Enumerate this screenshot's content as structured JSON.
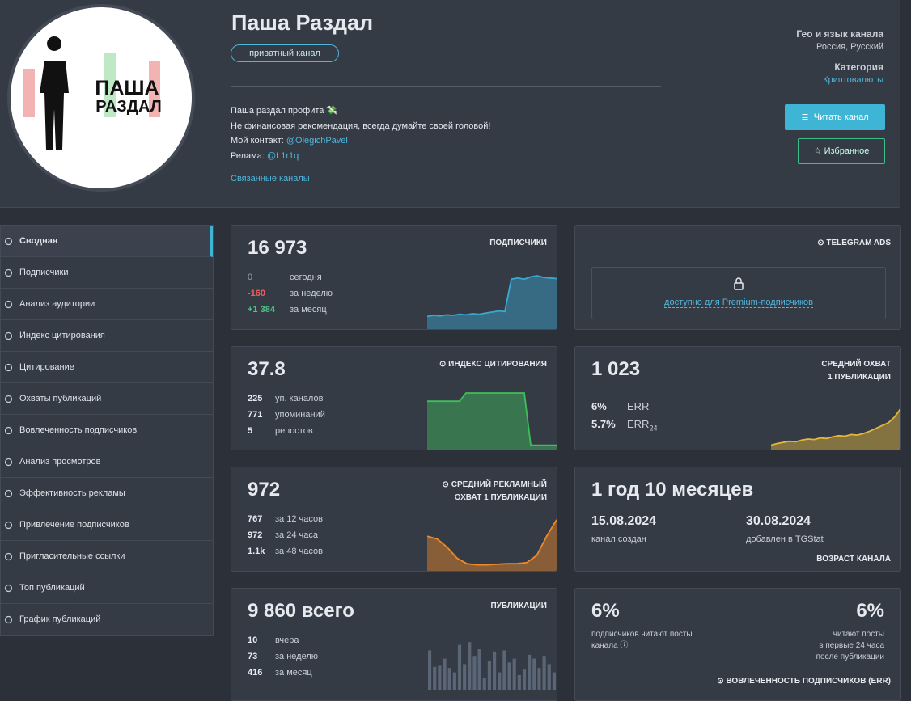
{
  "header": {
    "title": "Паша Раздал",
    "avatar_text": [
      "ПАША",
      "РАЗДАЛ"
    ],
    "badge": "приватный канал",
    "description": [
      {
        "text": "Паша раздал профита 💸"
      },
      {
        "text": "Не финансовая рекомендация, всегда думайте своей головой!"
      },
      {
        "text": "Мой контакт:",
        "link": "@OlegichPavel"
      },
      {
        "text": "Релама:",
        "link": "@L1r1q"
      }
    ],
    "related": "Связанные каналы",
    "geo_label": "Гео и язык канала",
    "geo": "Россия, Русский",
    "category_label": "Категория",
    "category": "Криптовалюты",
    "read_button": "Читать канал",
    "fav_button": "Избранное"
  },
  "menu": [
    "Сводная",
    "Подписчики",
    "Анализ аудитории",
    "Индекс цитирования",
    "Цитирование",
    "Охваты публикаций",
    "Вовлеченность подписчиков",
    "Анализ просмотров",
    "Эффективность рекламы",
    "Привлечение подписчиков",
    "Пригласительные ссылки",
    "Топ публикаций",
    "График публикаций"
  ],
  "cards": {
    "subscribers": {
      "value": "16 973",
      "label": "ПОДПИСЧИКИ",
      "rows": [
        {
          "num": "0",
          "text": "сегодня"
        },
        {
          "num": "-160",
          "text": "за неделю"
        },
        {
          "num": "+1 384",
          "text": "за месяц"
        }
      ],
      "spark": {
        "type": "area",
        "color": "#3aa7cf",
        "values": [
          20,
          22,
          21,
          23,
          22,
          24,
          23,
          25,
          24,
          26,
          28,
          30,
          29,
          88,
          90,
          88,
          92,
          94,
          91,
          90,
          89
        ]
      }
    },
    "ads": {
      "label": "TELEGRAM ADS",
      "locked": "доступно для Premium-подписчиков"
    },
    "citation": {
      "value": "37.8",
      "label": "ИНДЕКС ЦИТИРОВАНИЯ",
      "rows": [
        {
          "num": "225",
          "text": "уп. каналов"
        },
        {
          "num": "771",
          "text": "упоминаний"
        },
        {
          "num": "5",
          "text": "репостов"
        }
      ],
      "spark": {
        "type": "area",
        "color": "#3fbf5a",
        "values": [
          85,
          85,
          85,
          85,
          85,
          85,
          100,
          100,
          100,
          100,
          100,
          100,
          100,
          100,
          100,
          100,
          5,
          5,
          5,
          5,
          5
        ]
      }
    },
    "reach": {
      "value": "1 023",
      "label": [
        "СРЕДНИЙ ОХВАТ",
        "1 ПУБЛИКАЦИИ"
      ],
      "rows": [
        {
          "num": "6%",
          "text": "ERR"
        },
        {
          "num": "5.7%",
          "text": "ERR",
          "sub": "24"
        }
      ],
      "spark": {
        "type": "area",
        "color": "#e3b83a",
        "values": [
          5,
          8,
          10,
          12,
          11,
          14,
          16,
          15,
          18,
          17,
          20,
          22,
          21,
          24,
          23,
          26,
          30,
          35,
          40,
          45,
          55,
          70
        ]
      }
    },
    "adreach": {
      "value": "972",
      "label": [
        "СРЕДНИЙ РЕКЛАМНЫЙ",
        "ОХВАТ 1 ПУБЛИКАЦИИ"
      ],
      "rows": [
        {
          "num": "767",
          "text": "за 12 часов"
        },
        {
          "num": "972",
          "text": "за 24 часа"
        },
        {
          "num": "1.1k",
          "text": "за 48 часов"
        }
      ],
      "spark": {
        "type": "area",
        "color": "#ee8a2a",
        "values": [
          60,
          55,
          40,
          20,
          10,
          8,
          8,
          9,
          10,
          10,
          12,
          25,
          60,
          90
        ]
      }
    },
    "age": {
      "value": "1 год 10 месяцев",
      "created": "15.08.2024",
      "created_label": "канал создан",
      "added": "30.08.2024",
      "added_label": "добавлен в TGStat",
      "label": "ВОЗРАСТ КАНАЛА"
    },
    "posts": {
      "value": "9 860 всего",
      "label": "ПУБЛИКАЦИИ",
      "rows": [
        {
          "num": "10",
          "text": "вчера"
        },
        {
          "num": "73",
          "text": "за неделю"
        },
        {
          "num": "416",
          "text": "за месяц"
        }
      ],
      "spark": {
        "type": "bars",
        "color": "#5a6576",
        "values": [
          70,
          40,
          42,
          55,
          38,
          30,
          80,
          45,
          85,
          60,
          72,
          20,
          50,
          68,
          30,
          70,
          48,
          55,
          25,
          35,
          62,
          55,
          38,
          60,
          45,
          30
        ]
      }
    },
    "err": {
      "value1": "6%",
      "text1": "подписчиков читают посты канала",
      "value2": "6%",
      "text2": [
        "читают посты",
        "в первые 24 часа",
        "после публикации"
      ],
      "label": "ВОВЛЕЧЕННОСТЬ ПОДПИСЧИКОВ (ERR)"
    }
  }
}
